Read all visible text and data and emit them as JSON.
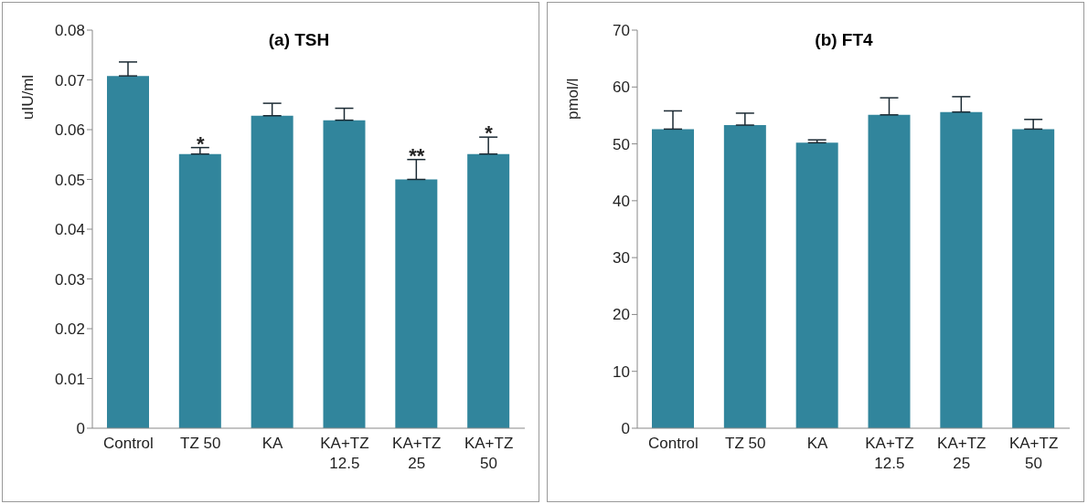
{
  "chart_data": [
    {
      "type": "bar",
      "title": "(a) TSH",
      "ylabel": "uIU/ml",
      "categories": [
        "Control",
        "TZ 50",
        "KA",
        "KA+TZ\n12.5",
        "KA+TZ\n25",
        "KA+TZ\n50"
      ],
      "values": [
        0.0708,
        0.0551,
        0.0628,
        0.0619,
        0.05,
        0.0551
      ],
      "errors": [
        [
          0.0708,
          0.0736
        ],
        [
          0.0551,
          0.0564
        ],
        [
          0.0628,
          0.0653
        ],
        [
          0.0619,
          0.0643
        ],
        [
          0.05,
          0.054
        ],
        [
          0.0551,
          0.0585
        ]
      ],
      "color": "#31859c",
      "ylim": [
        0,
        0.08
      ],
      "yticks": [
        0,
        0.01,
        0.02,
        0.03,
        0.04,
        0.05,
        0.06,
        0.07,
        0.08
      ],
      "grid": false,
      "annotations": [
        {
          "text": "*",
          "x": "TZ 50",
          "y": 0.0564
        },
        {
          "text": "**",
          "x": "KA+TZ\n25",
          "y": 0.054
        },
        {
          "text": "*",
          "x": "KA+TZ\n50",
          "y": 0.0585
        }
      ]
    },
    {
      "type": "bar",
      "title": "(b) FT4",
      "ylabel": "pmol/l",
      "categories": [
        "Control",
        "TZ 50",
        "KA",
        "KA+TZ\n12.5",
        "KA+TZ\n25",
        "KA+TZ\n50"
      ],
      "values": [
        52.6,
        53.3,
        50.2,
        55.1,
        55.6,
        52.6
      ],
      "errors": [
        [
          52.6,
          55.8
        ],
        [
          53.3,
          55.4
        ],
        [
          50.2,
          50.7
        ],
        [
          55.1,
          58.1
        ],
        [
          55.6,
          58.3
        ],
        [
          52.6,
          54.3
        ]
      ],
      "color": "#31859c",
      "ylim": [
        0,
        70
      ],
      "yticks": [
        0,
        10,
        20,
        30,
        40,
        50,
        60,
        70
      ],
      "grid": false
    }
  ]
}
